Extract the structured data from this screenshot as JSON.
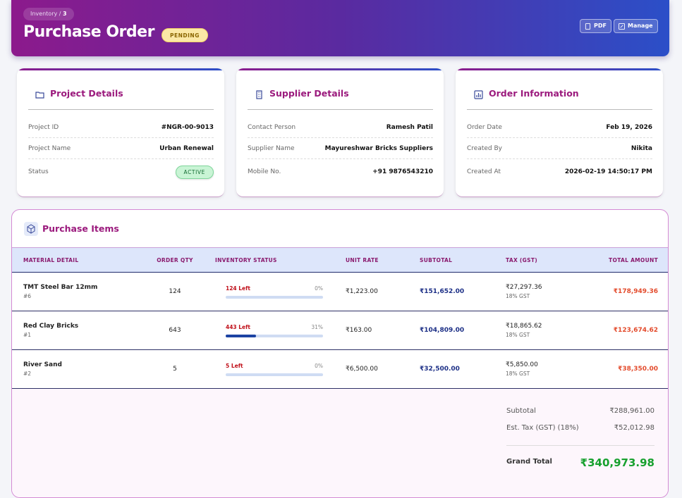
{
  "header": {
    "breadcrumb": {
      "parent": "Inventory",
      "separator": "/",
      "current": "3"
    },
    "title": "Purchase Order",
    "status": "PENDING",
    "actions": [
      "PDF",
      "Manage"
    ]
  },
  "cards": [
    {
      "title": "Project Details",
      "rows": [
        {
          "label": "Project ID",
          "value": "#NGR-00-9013"
        },
        {
          "label": "Project Name",
          "value": "Urban Renewal"
        },
        {
          "label": "Status",
          "value": "ACTIVE"
        }
      ]
    },
    {
      "title": "Supplier Details",
      "rows": [
        {
          "label": "Contact Person",
          "value": "Ramesh Patil"
        },
        {
          "label": "Supplier Name",
          "value": "Mayureshwar Bricks Suppliers"
        },
        {
          "label": "Mobile No.",
          "value": "+91 9876543210"
        }
      ]
    },
    {
      "title": "Order Information",
      "rows": [
        {
          "label": "Order Date",
          "value": "Feb 19, 2026"
        },
        {
          "label": "Created By",
          "value": "Nikita"
        },
        {
          "label": "Created At",
          "value": "2026-02-19 14:50:17 PM"
        }
      ]
    }
  ],
  "items": {
    "title": "Purchase Items",
    "columns": [
      "MATERIAL DETAIL",
      "ORDER QTY",
      "INVENTORY STATUS",
      "UNIT RATE",
      "SUBTOTAL",
      "TAX (GST)",
      "TOTAL AMOUNT"
    ],
    "rows": [
      {
        "name": "TMT Steel Bar 12mm",
        "id": "#6",
        "qty": "124",
        "left": "124 Left",
        "pct": "0%",
        "rate": "₹1,223.00",
        "subtotal": "₹151,652.00",
        "tax": "₹27,297.36",
        "tax_rate": "18% GST",
        "total": "₹178,949.36"
      },
      {
        "name": "Red Clay Bricks",
        "id": "#1",
        "qty": "643",
        "left": "443 Left",
        "pct": "31%",
        "rate": "₹163.00",
        "subtotal": "₹104,809.00",
        "tax": "₹18,865.62",
        "tax_rate": "18% GST",
        "total": "₹123,674.62"
      },
      {
        "name": "River Sand",
        "id": "#2",
        "qty": "5",
        "left": "5 Left",
        "pct": "0%",
        "rate": "₹6,500.00",
        "subtotal": "₹32,500.00",
        "tax": "₹5,850.00",
        "tax_rate": "18% GST",
        "total": "₹38,350.00"
      }
    ]
  },
  "summary": {
    "rows": [
      {
        "label": "Subtotal",
        "value": "₹288,961.00"
      },
      {
        "label": "Est. Tax (GST) (18%)",
        "value": "₹52,012.98"
      }
    ],
    "grand_label": "Grand Total",
    "grand_value": "₹340,973.98"
  }
}
